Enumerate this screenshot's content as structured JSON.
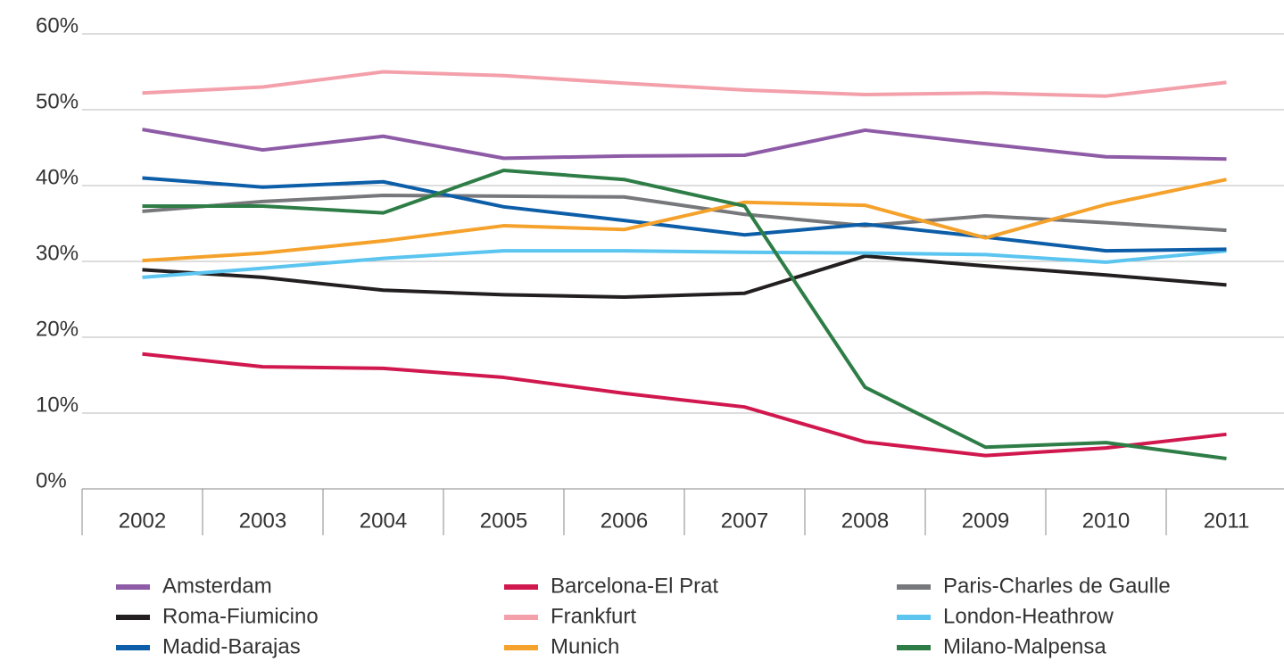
{
  "chart_data": {
    "type": "line",
    "categories": [
      "2002",
      "2003",
      "2004",
      "2005",
      "2006",
      "2007",
      "2008",
      "2009",
      "2010",
      "2011"
    ],
    "ylim": [
      0,
      60
    ],
    "yticks": [
      {
        "value": 0,
        "label": "0%"
      },
      {
        "value": 10,
        "label": "10%"
      },
      {
        "value": 20,
        "label": "20%"
      },
      {
        "value": 30,
        "label": "30%"
      },
      {
        "value": 40,
        "label": "40%"
      },
      {
        "value": 50,
        "label": "50%"
      },
      {
        "value": 60,
        "label": "60%"
      }
    ],
    "grid": true,
    "legend": "bottom",
    "series": [
      {
        "name": "Amsterdam",
        "color": "#8e5ba6",
        "values": [
          47.4,
          44.7,
          46.5,
          43.6,
          43.9,
          44.0,
          47.3,
          45.5,
          43.8,
          43.5
        ]
      },
      {
        "name": "Barcelona-El Prat",
        "color": "#d0174e",
        "values": [
          17.8,
          16.1,
          15.9,
          14.7,
          12.6,
          10.8,
          6.2,
          4.4,
          5.4,
          7.2
        ]
      },
      {
        "name": "Paris-Charles de Gaulle",
        "color": "#77787b",
        "values": [
          36.6,
          37.9,
          38.7,
          38.6,
          38.5,
          36.2,
          34.7,
          36.0,
          35.1,
          34.1
        ]
      },
      {
        "name": "Roma-Fiumicino",
        "color": "#231f20",
        "values": [
          28.9,
          27.9,
          26.2,
          25.6,
          25.3,
          25.8,
          30.7,
          29.4,
          28.2,
          26.9
        ]
      },
      {
        "name": "Frankfurt",
        "color": "#f3a0ab",
        "values": [
          52.2,
          53.0,
          55.0,
          54.5,
          53.5,
          52.6,
          52.0,
          52.2,
          51.8,
          53.6
        ]
      },
      {
        "name": "London-Heathrow",
        "color": "#5bc5f0",
        "values": [
          27.9,
          29.1,
          30.4,
          31.4,
          31.4,
          31.2,
          31.1,
          30.9,
          29.9,
          31.4
        ]
      },
      {
        "name": "Madid-Barajas",
        "color": "#0d5ea8",
        "values": [
          41.0,
          39.8,
          40.5,
          37.2,
          35.4,
          33.5,
          34.9,
          33.2,
          31.4,
          31.6
        ]
      },
      {
        "name": "Munich",
        "color": "#f5a22c",
        "values": [
          30.1,
          31.1,
          32.7,
          34.7,
          34.2,
          37.8,
          37.4,
          33.1,
          37.5,
          40.8
        ]
      },
      {
        "name": "Milano-Malpensa",
        "color": "#2e7d46",
        "values": [
          37.3,
          37.3,
          36.4,
          42.0,
          40.8,
          37.3,
          13.4,
          5.5,
          6.1,
          4.0
        ]
      }
    ]
  }
}
